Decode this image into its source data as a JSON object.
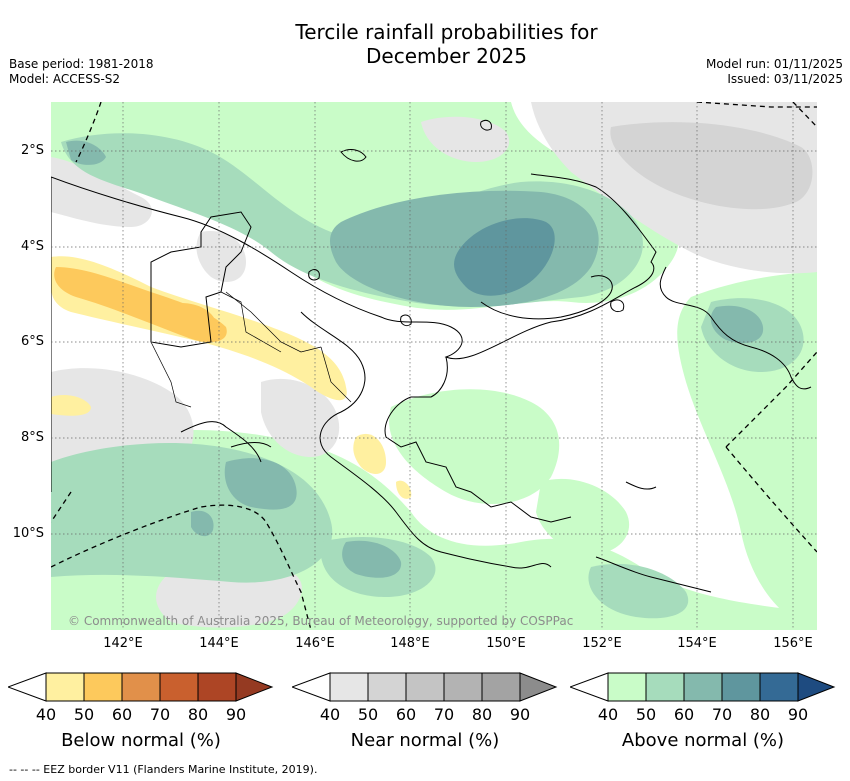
{
  "header": {
    "title_line1": "Tercile rainfall probabilities for",
    "title_line2": "December 2025",
    "base_period": "Base period: 1981-2018",
    "model": "Model: ACCESS-S2",
    "model_run": "Model run: 01/11/2025",
    "issued": "Issued: 03/11/2025"
  },
  "map": {
    "lat_labels": [
      "2°S",
      "4°S",
      "6°S",
      "8°S",
      "10°S"
    ],
    "lon_labels": [
      "142°E",
      "144°E",
      "146°E",
      "148°E",
      "150°E",
      "152°E",
      "154°E",
      "156°E"
    ],
    "copyright": "© Commonwealth of Australia 2025, Bureau of Meteorology, supported by COSPPac"
  },
  "colorbars": [
    {
      "title": "Below normal (%)",
      "ticks": [
        "40",
        "50",
        "60",
        "70",
        "80",
        "90"
      ],
      "colors": [
        "#ffffff",
        "#fff0a0",
        "#fdc95c",
        "#e1904a",
        "#c9602e",
        "#ad4525",
        "#953a22"
      ]
    },
    {
      "title": "Near normal (%)",
      "ticks": [
        "40",
        "50",
        "60",
        "70",
        "80",
        "90"
      ],
      "colors": [
        "#ffffff",
        "#e6e6e6",
        "#d4d4d4",
        "#c4c4c4",
        "#b3b3b3",
        "#a3a3a3",
        "#8c8c8c"
      ]
    },
    {
      "title": "Above normal (%)",
      "ticks": [
        "40",
        "50",
        "60",
        "70",
        "80",
        "90"
      ],
      "colors": [
        "#ffffff",
        "#c9fcc8",
        "#a6dcbc",
        "#84b9ad",
        "#5f969e",
        "#346a95",
        "#1e4b80"
      ]
    }
  ],
  "footnote": "-- -- -- EEZ border V11 (Flanders Marine Institute, 2019)."
}
